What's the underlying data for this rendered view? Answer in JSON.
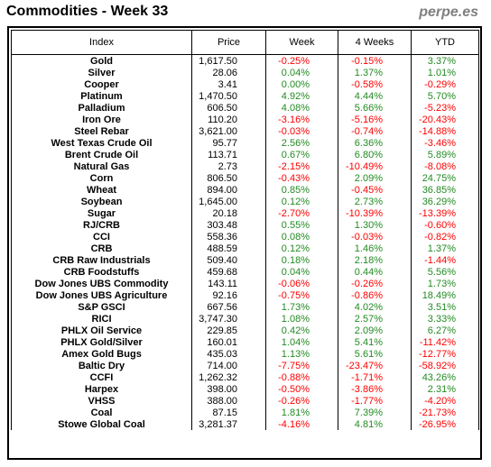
{
  "header": {
    "title": "Commodities - Week 33",
    "brand": "perpe.es"
  },
  "colors": {
    "positive": "#228b22",
    "negative": "#ff0000"
  },
  "columns": [
    "Index",
    "Price",
    "Week",
    "4 Weeks",
    "YTD"
  ],
  "rows": [
    {
      "name": "Gold",
      "price": "1,617.50",
      "week": "-0.25%",
      "four_weeks": "-0.15%",
      "ytd": "3.37%"
    },
    {
      "name": "Silver",
      "price": "28.06",
      "week": "0.04%",
      "four_weeks": "1.37%",
      "ytd": "1.01%"
    },
    {
      "name": "Cooper",
      "price": "3.41",
      "week": "0.00%",
      "four_weeks": "-0.58%",
      "ytd": "-0.29%"
    },
    {
      "name": "Platinum",
      "price": "1,470.50",
      "week": "4.92%",
      "four_weeks": "4.44%",
      "ytd": "5.70%"
    },
    {
      "name": "Palladium",
      "price": "606.50",
      "week": "4.08%",
      "four_weeks": "5.66%",
      "ytd": "-5.23%"
    },
    {
      "name": "Iron Ore",
      "price": "110.20",
      "week": "-3.16%",
      "four_weeks": "-5.16%",
      "ytd": "-20.43%"
    },
    {
      "name": "Steel Rebar",
      "price": "3,621.00",
      "week": "-0.03%",
      "four_weeks": "-0.74%",
      "ytd": "-14.88%"
    },
    {
      "name": "West Texas Crude Oil",
      "price": "95.77",
      "week": "2.56%",
      "four_weeks": "6.36%",
      "ytd": "-3.46%"
    },
    {
      "name": "Brent Crude Oil",
      "price": "113.71",
      "week": "0.67%",
      "four_weeks": "6.80%",
      "ytd": "5.89%"
    },
    {
      "name": "Natural Gas",
      "price": "2.73",
      "week": "-2.15%",
      "four_weeks": "-10.49%",
      "ytd": "-8.08%"
    },
    {
      "name": "Corn",
      "price": "806.50",
      "week": "-0.43%",
      "four_weeks": "2.09%",
      "ytd": "24.75%"
    },
    {
      "name": "Wheat",
      "price": "894.00",
      "week": "0.85%",
      "four_weeks": "-0.45%",
      "ytd": "36.85%"
    },
    {
      "name": "Soybean",
      "price": "1,645.00",
      "week": "0.12%",
      "four_weeks": "2.73%",
      "ytd": "36.29%"
    },
    {
      "name": "Sugar",
      "price": "20.18",
      "week": "-2.70%",
      "four_weeks": "-10.39%",
      "ytd": "-13.39%"
    },
    {
      "name": "RJ/CRB",
      "price": "303.48",
      "week": "0.55%",
      "four_weeks": "1.30%",
      "ytd": "-0.60%"
    },
    {
      "name": "CCI",
      "price": "558.36",
      "week": "0.08%",
      "four_weeks": "-0.03%",
      "ytd": "-0.82%"
    },
    {
      "name": "CRB",
      "price": "488.59",
      "week": "0.12%",
      "four_weeks": "1.46%",
      "ytd": "1.37%"
    },
    {
      "name": "CRB Raw Industrials",
      "price": "509.40",
      "week": "0.18%",
      "four_weeks": "2.18%",
      "ytd": "-1.44%"
    },
    {
      "name": "CRB Foodstuffs",
      "price": "459.68",
      "week": "0.04%",
      "four_weeks": "0.44%",
      "ytd": "5.56%"
    },
    {
      "name": "Dow Jones UBS Commodity",
      "price": "143.11",
      "week": "-0.06%",
      "four_weeks": "-0.26%",
      "ytd": "1.73%"
    },
    {
      "name": "Dow Jones UBS Agriculture",
      "price": "92.16",
      "week": "-0.75%",
      "four_weeks": "-0.86%",
      "ytd": "18.49%"
    },
    {
      "name": "S&P GSCI",
      "price": "667.56",
      "week": "1.73%",
      "four_weeks": "4.02%",
      "ytd": "3.51%"
    },
    {
      "name": "RICI",
      "price": "3,747.30",
      "week": "1.08%",
      "four_weeks": "2.57%",
      "ytd": "3.33%"
    },
    {
      "name": "PHLX Oil Service",
      "price": "229.85",
      "week": "0.42%",
      "four_weeks": "2.09%",
      "ytd": "6.27%"
    },
    {
      "name": "PHLX Gold/Silver",
      "price": "160.01",
      "week": "1.04%",
      "four_weeks": "5.41%",
      "ytd": "-11.42%"
    },
    {
      "name": "Amex Gold Bugs",
      "price": "435.03",
      "week": "1.13%",
      "four_weeks": "5.61%",
      "ytd": "-12.77%"
    },
    {
      "name": "Baltic Dry",
      "price": "714.00",
      "week": "-7.75%",
      "four_weeks": "-23.47%",
      "ytd": "-58.92%"
    },
    {
      "name": "CCFI",
      "price": "1,262.32",
      "week": "-0.88%",
      "four_weeks": "-1.71%",
      "ytd": "43.26%"
    },
    {
      "name": "Harpex",
      "price": "398.00",
      "week": "-0.50%",
      "four_weeks": "-3.86%",
      "ytd": "2.31%"
    },
    {
      "name": "VHSS",
      "price": "388.00",
      "week": "-0.26%",
      "four_weeks": "-1.77%",
      "ytd": "-4.20%"
    },
    {
      "name": "Coal",
      "price": "87.15",
      "week": "1.81%",
      "four_weeks": "7.39%",
      "ytd": "-21.73%"
    },
    {
      "name": "Stowe Global Coal",
      "price": "3,281.37",
      "week": "-4.16%",
      "four_weeks": "4.81%",
      "ytd": "-26.95%"
    }
  ]
}
